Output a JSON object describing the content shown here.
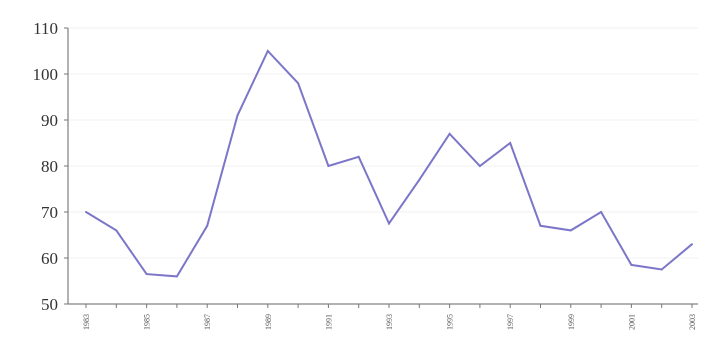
{
  "chart_data": {
    "type": "line",
    "title": "",
    "xlabel": "",
    "ylabel": "",
    "x": [
      1983,
      1984,
      1985,
      1986,
      1987,
      1988,
      1989,
      1990,
      1991,
      1992,
      1993,
      1994,
      1995,
      1996,
      1997,
      1998,
      1999,
      2000,
      2001,
      2002,
      2003
    ],
    "x_tick_labels": [
      "1983",
      "1985",
      "1987",
      "1989",
      "1991",
      "1993",
      "1995",
      "1997",
      "1999",
      "2001",
      "2003"
    ],
    "y_ticks": [
      50,
      60,
      70,
      80,
      90,
      100,
      110
    ],
    "ylim": [
      50,
      110
    ],
    "grid": true,
    "legend": "none",
    "series": [
      {
        "values": [
          70,
          66,
          56.5,
          56,
          67,
          91,
          105,
          98,
          80,
          82,
          67.5,
          77,
          87,
          80,
          85,
          67,
          66,
          70,
          58.5,
          57.5,
          63
        ]
      }
    ],
    "colors": {
      "line": "#7b76c8",
      "axis": "#666666",
      "grid": "#f2f2f2"
    }
  }
}
